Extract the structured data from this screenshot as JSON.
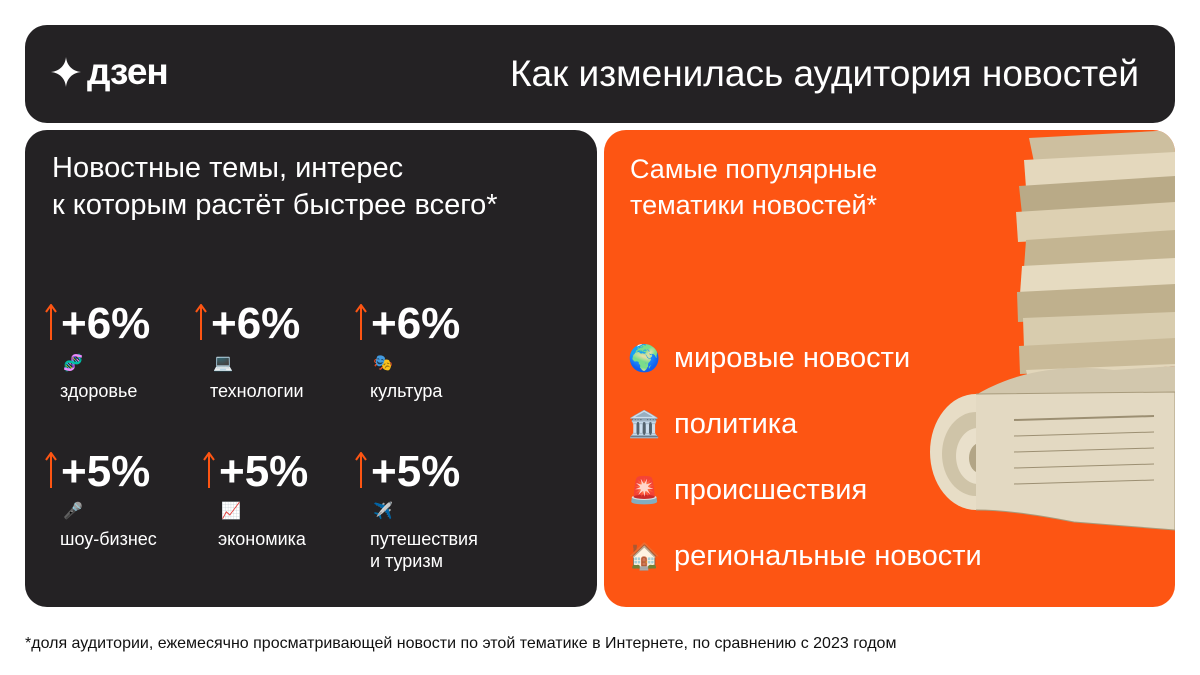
{
  "header": {
    "logo_text": "дзен",
    "title": "Как изменилась аудитория новостей"
  },
  "growth": {
    "title_line1": "Новостные темы, интерес",
    "title_line2": "к которым растёт быстрее всего*",
    "items": [
      {
        "value": "+6%",
        "emoji": "🧬",
        "label": "здоровье"
      },
      {
        "value": "+6%",
        "emoji": "💻",
        "label": "технологии"
      },
      {
        "value": "+6%",
        "emoji": "🎭",
        "label": "культура"
      },
      {
        "value": "+5%",
        "emoji": "🎤",
        "label": "шоу-бизнес"
      },
      {
        "value": "+5%",
        "emoji": "📈",
        "label": "экономика"
      },
      {
        "value": "+5%",
        "emoji": "✈️",
        "label_line1": "путешествия",
        "label_line2": "и туризм"
      }
    ]
  },
  "popular": {
    "title_line1": "Самые популярные",
    "title_line2": "тематики новостей*",
    "topics": [
      {
        "icon": "🌍",
        "label": "мировые новости"
      },
      {
        "icon": "🏛️",
        "label": "политика"
      },
      {
        "icon": "🚨",
        "label": "происшествия"
      },
      {
        "icon": "🏠",
        "label": "региональные новости"
      }
    ]
  },
  "footnote": "*доля аудитории, ежемесячно просматривающей новости по этой тематике в Интернете, по сравнению с 2023 годом",
  "colors": {
    "dark": "#242224",
    "accent": "#fd5513",
    "arrow": "#fd5513"
  }
}
